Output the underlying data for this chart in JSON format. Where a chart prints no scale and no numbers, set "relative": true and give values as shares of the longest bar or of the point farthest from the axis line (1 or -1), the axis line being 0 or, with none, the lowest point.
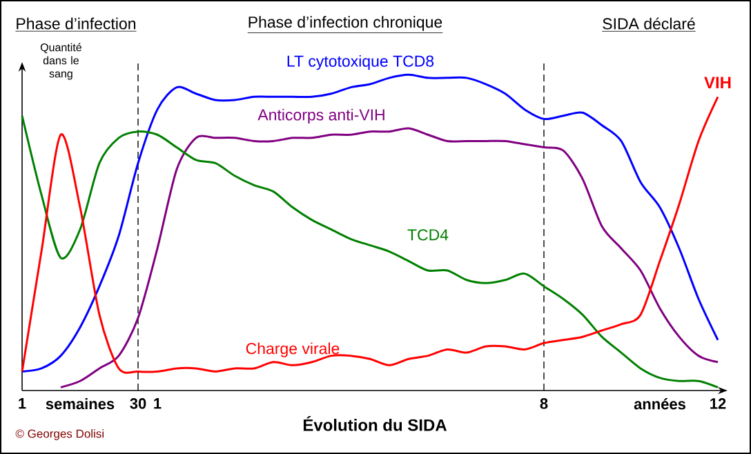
{
  "chart_data": {
    "type": "line",
    "relative": true,
    "xlabel": "Évolution du SIDA",
    "ylabel": "Quantité dans le sang",
    "categories": [
      "1",
      null,
      null,
      "semaines",
      null,
      null,
      "30",
      "1",
      null,
      null,
      null,
      null,
      null,
      null,
      null,
      null,
      null,
      null,
      null,
      null,
      null,
      null,
      null,
      null,
      null,
      null,
      null,
      "8",
      null,
      null,
      null,
      null,
      null,
      "années",
      null,
      null,
      "12"
    ],
    "series": [
      {
        "name": "LT cytotoxique TCD8",
        "color": "#0000ff",
        "values": [
          0.06,
          0.07,
          0.11,
          0.2,
          0.33,
          0.49,
          0.72,
          0.89,
          0.96,
          0.94,
          0.92,
          0.92,
          0.93,
          0.93,
          0.93,
          0.93,
          0.94,
          0.96,
          0.97,
          0.99,
          1.0,
          0.99,
          0.99,
          0.99,
          0.97,
          0.94,
          0.89,
          0.86,
          0.87,
          0.88,
          0.84,
          0.79,
          0.66,
          0.58,
          0.45,
          0.29,
          0.16
        ]
      },
      {
        "name": "Anticorps anti-VIH",
        "color": "#800080",
        "values": [
          null,
          null,
          0.01,
          0.03,
          0.07,
          0.11,
          0.23,
          0.45,
          0.7,
          0.8,
          0.8,
          0.8,
          0.79,
          0.79,
          0.8,
          0.8,
          0.81,
          0.81,
          0.82,
          0.82,
          0.83,
          0.81,
          0.79,
          0.79,
          0.79,
          0.79,
          0.78,
          0.77,
          0.76,
          0.67,
          0.52,
          0.45,
          0.38,
          0.26,
          0.17,
          0.11,
          0.09
        ]
      },
      {
        "name": "TCD4",
        "color": "#008000",
        "values": [
          0.87,
          0.62,
          0.42,
          0.51,
          0.72,
          0.8,
          0.82,
          0.81,
          0.77,
          0.73,
          0.72,
          0.68,
          0.65,
          0.63,
          0.58,
          0.54,
          0.51,
          0.48,
          0.46,
          0.44,
          0.41,
          0.38,
          0.38,
          0.35,
          0.34,
          0.35,
          0.37,
          0.33,
          0.29,
          0.24,
          0.17,
          0.12,
          0.07,
          0.04,
          0.03,
          0.03,
          0.01
        ]
      },
      {
        "name": "Charge virale",
        "color": "#ff0000",
        "values": [
          0.06,
          0.44,
          0.81,
          0.58,
          0.24,
          0.07,
          0.06,
          0.06,
          0.07,
          0.07,
          0.06,
          0.07,
          0.07,
          0.09,
          0.08,
          0.09,
          0.11,
          0.11,
          0.1,
          0.08,
          0.1,
          0.11,
          0.13,
          0.12,
          0.14,
          0.14,
          0.13,
          0.15,
          0.16,
          0.17,
          0.19,
          0.21,
          0.24,
          0.41,
          0.59,
          0.79,
          0.93
        ]
      }
    ],
    "ref_lines": [
      {
        "axis": "x",
        "value": "30",
        "line_style": "dashed"
      },
      {
        "axis": "x",
        "value": "8",
        "line_style": "dashed"
      }
    ],
    "annotations": [
      "Phase d’infection",
      "Phase d’infection chronique",
      "SIDA déclaré",
      "© Georges Dolisi",
      {
        "text": "VIH",
        "x": "12",
        "y": 0.93
      }
    ]
  }
}
